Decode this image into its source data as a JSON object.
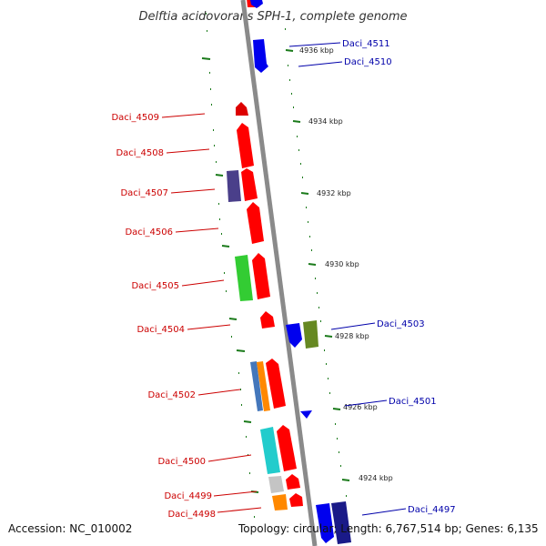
{
  "title": "Delftia acidovorans SPH-1, complete genome",
  "accession": "Accession: NC_010002",
  "topology": "Topology: circular; Length: 6,767,514 bp; Genes: 6,135",
  "colors": {
    "backbone": "#8a8a8a",
    "tick": "#1a7a1a",
    "label_left": "#cc0000",
    "label_right": "#0000aa"
  },
  "kbp_labels": [
    "4936 kbp",
    "4934 kbp",
    "4932 kbp",
    "4930 kbp",
    "4928 kbp",
    "4926 kbp",
    "4924 kbp"
  ],
  "gene_labels_left": [
    "Daci_4509",
    "Daci_4508",
    "Daci_4507",
    "Daci_4506",
    "Daci_4505",
    "Daci_4504",
    "Daci_4502",
    "Daci_4500",
    "Daci_4499",
    "Daci_4498"
  ],
  "gene_labels_right": [
    "Daci_4511",
    "Daci_4510",
    "Daci_4503",
    "Daci_4501",
    "Daci_4497"
  ]
}
